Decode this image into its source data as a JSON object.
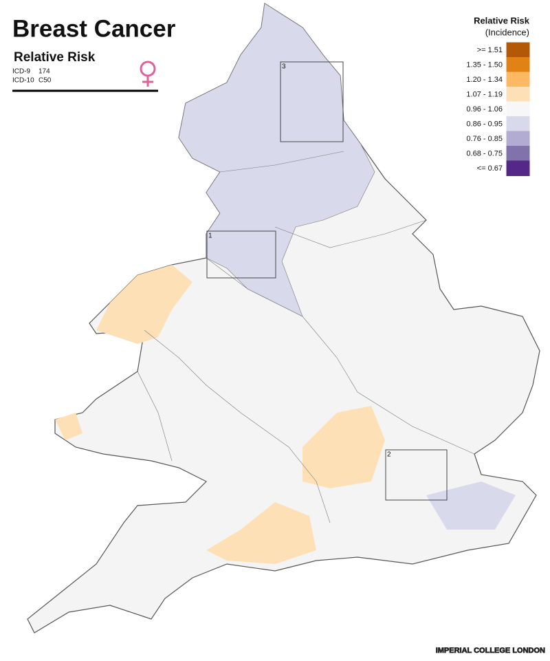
{
  "header": {
    "title": "Breast Cancer",
    "subtitle": "Relative Risk",
    "codes": [
      {
        "system": "ICD-9",
        "code": "174"
      },
      {
        "system": "ICD-10",
        "code": "C50"
      }
    ]
  },
  "legend": {
    "title": "Relative Risk",
    "subtitle": "(Incidence)",
    "items": [
      {
        "label": ">= 1.51",
        "color": "#b35806"
      },
      {
        "label": "1.35 - 1.50",
        "color": "#e08214"
      },
      {
        "label": "1.20 - 1.34",
        "color": "#fdb863"
      },
      {
        "label": "1.07 - 1.19",
        "color": "#fee0b6"
      },
      {
        "label": "0.96 - 1.06",
        "color": "#f7f7f7"
      },
      {
        "label": "0.86 - 0.95",
        "color": "#d8daeb"
      },
      {
        "label": "0.76 - 0.85",
        "color": "#b2abd2"
      },
      {
        "label": "0.68 - 0.75",
        "color": "#8073ac"
      },
      {
        "label": "<= 0.67",
        "color": "#542788"
      }
    ]
  },
  "insets": [
    "1",
    "2",
    "3"
  ],
  "footer": "IMPERIAL COLLEGE LONDON"
}
